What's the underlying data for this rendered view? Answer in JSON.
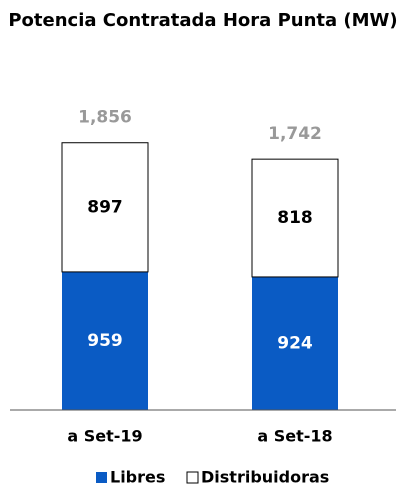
{
  "chart_data": {
    "type": "stacked_bar",
    "title": "Potencia Contratada Hora Punta (MW)",
    "categories": [
      "a Set-19",
      "a Set-18"
    ],
    "series": [
      {
        "name": "Libres",
        "color": "#0a5bc4",
        "label_color": "#ffffff",
        "values": [
          959,
          924
        ]
      },
      {
        "name": "Distribuidoras",
        "color": "#ffffff",
        "label_color": "#000000",
        "values": [
          897,
          818
        ]
      }
    ],
    "totals": [
      1856,
      1742
    ],
    "total_labels": [
      "1,856",
      "1,742"
    ],
    "ylim": [
      0,
      2000
    ],
    "legend": "bottom"
  }
}
